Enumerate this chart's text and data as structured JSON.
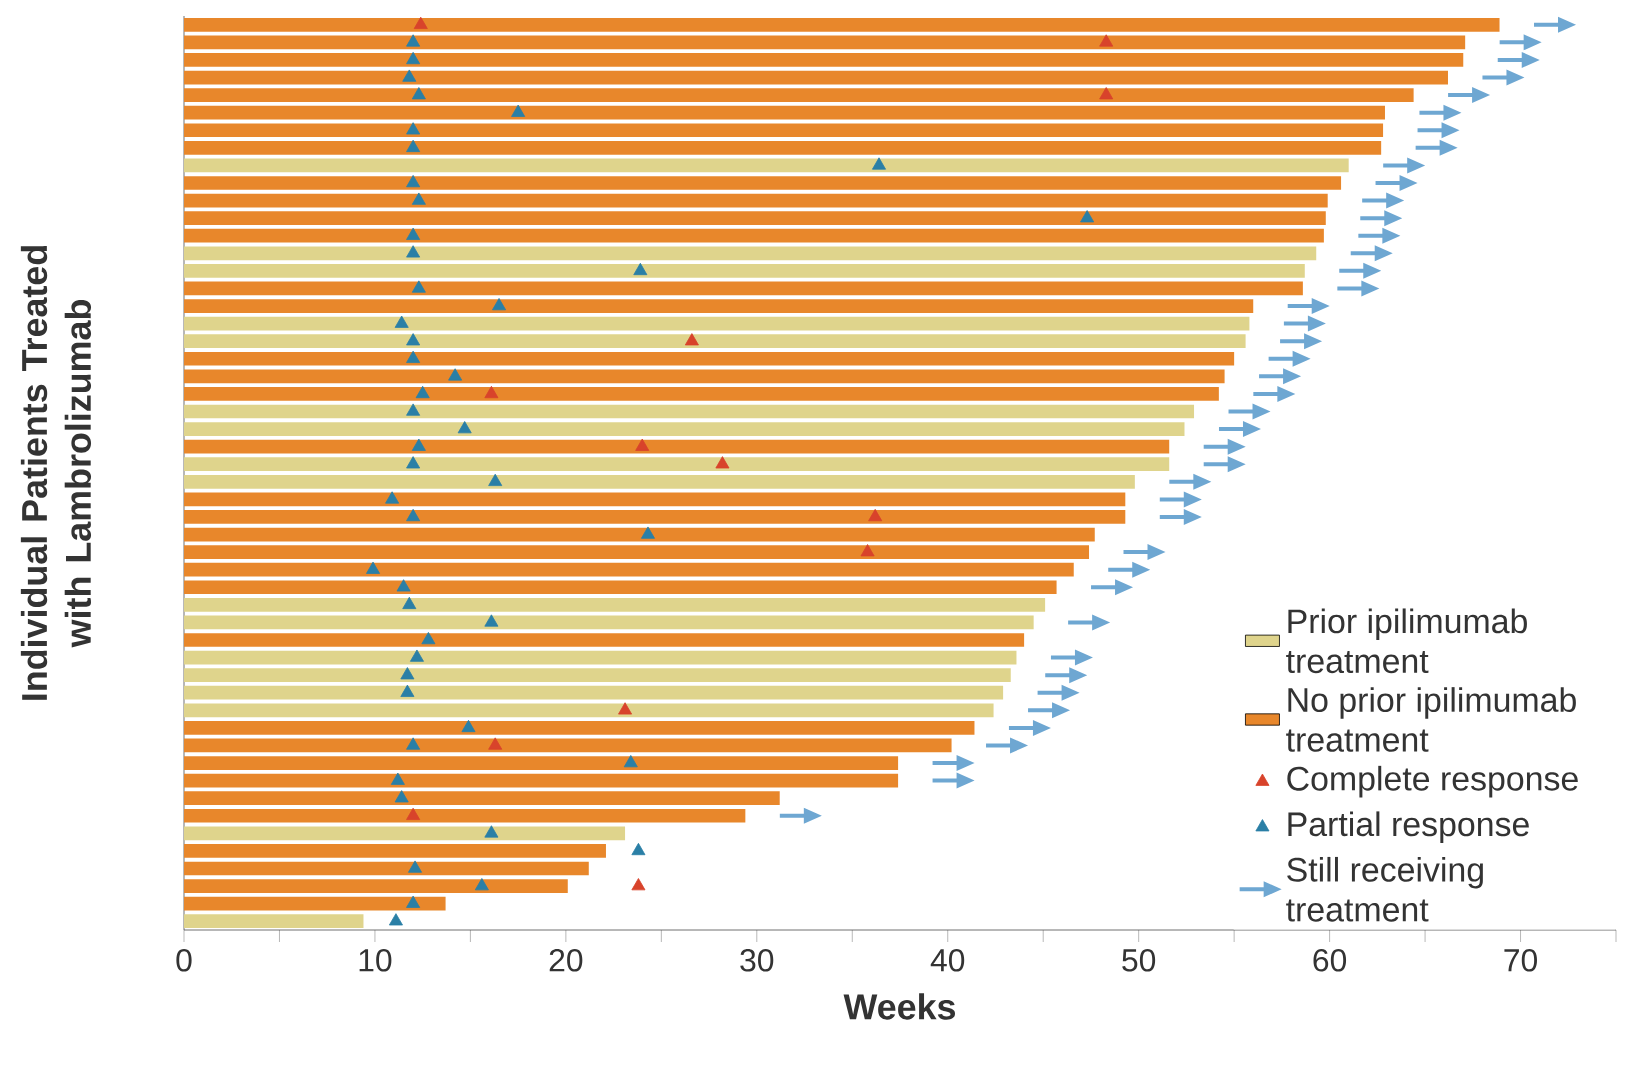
{
  "chart_data": {
    "type": "bar",
    "orientation": "horizontal",
    "xlabel": "Weeks",
    "ylabel": "Individual Patients Treated with Lambrolizumab",
    "categories": [
      null,
      null,
      null,
      null,
      null,
      null,
      null,
      null,
      null,
      null,
      null,
      null,
      null,
      null,
      null,
      null,
      null,
      null,
      null,
      null,
      null,
      null,
      null,
      null,
      null,
      null,
      null,
      null,
      null,
      null,
      null,
      null,
      null,
      null,
      null,
      null,
      null,
      null,
      null,
      null,
      null,
      null,
      null,
      null,
      null,
      null,
      null,
      null,
      null,
      null,
      null,
      null
    ],
    "series": [
      {
        "name": "Prior ipilimumab treatment",
        "color": "#dfd48c",
        "values": [
          null,
          null,
          null,
          null,
          null,
          null,
          null,
          null,
          61.0,
          null,
          null,
          null,
          null,
          59.3,
          58.7,
          null,
          null,
          55.8,
          55.6,
          null,
          null,
          null,
          52.9,
          52.4,
          null,
          51.6,
          49.8,
          null,
          null,
          null,
          null,
          null,
          null,
          45.1,
          44.5,
          null,
          43.6,
          43.3,
          42.9,
          42.4,
          null,
          null,
          null,
          null,
          null,
          null,
          23.1,
          null,
          null,
          null,
          null,
          9.4
        ]
      },
      {
        "name": "No prior ipilimumab treatment",
        "color": "#e8872b",
        "values": [
          68.9,
          67.1,
          67.0,
          66.2,
          64.4,
          62.9,
          62.8,
          62.7,
          null,
          60.6,
          59.9,
          59.8,
          59.7,
          null,
          null,
          58.6,
          56.0,
          null,
          null,
          55.0,
          54.5,
          54.2,
          null,
          null,
          51.6,
          null,
          null,
          49.3,
          49.3,
          47.7,
          47.4,
          46.6,
          45.7,
          null,
          null,
          44.0,
          null,
          null,
          null,
          null,
          41.4,
          40.2,
          37.4,
          37.4,
          31.2,
          29.4,
          null,
          22.1,
          21.2,
          20.1,
          13.7,
          null
        ]
      },
      {
        "name": "Complete response",
        "type": "scatter",
        "marker": "triangle",
        "color": "#d8432b",
        "values": [
          12.4,
          48.3,
          null,
          null,
          48.3,
          null,
          null,
          null,
          null,
          null,
          null,
          null,
          null,
          null,
          null,
          null,
          null,
          null,
          26.6,
          null,
          null,
          16.1,
          null,
          null,
          24.0,
          28.2,
          null,
          null,
          36.2,
          null,
          35.8,
          null,
          null,
          null,
          null,
          null,
          null,
          null,
          null,
          23.1,
          null,
          16.3,
          null,
          null,
          null,
          12.0,
          null,
          null,
          null,
          23.8,
          null,
          null
        ]
      },
      {
        "name": "Partial response",
        "type": "scatter",
        "marker": "triangle",
        "color": "#2a7fa6",
        "values": [
          null,
          12.0,
          12.0,
          11.8,
          12.3,
          17.5,
          12.0,
          12.0,
          36.4,
          12.0,
          12.3,
          47.3,
          12.0,
          12.0,
          23.9,
          12.3,
          16.5,
          11.4,
          12.0,
          12.0,
          14.2,
          12.5,
          12.0,
          14.7,
          12.3,
          12.0,
          16.3,
          10.9,
          12.0,
          24.3,
          null,
          9.9,
          11.5,
          11.8,
          16.1,
          12.8,
          12.2,
          11.7,
          11.7,
          null,
          14.9,
          12.0,
          23.4,
          11.2,
          11.4,
          null,
          16.1,
          23.8,
          12.1,
          15.6,
          12.0,
          11.1
        ]
      },
      {
        "name": "Still receiving treatment",
        "type": "scatter",
        "color": "#6ea7d2",
        "values": [
          71.9,
          70.1,
          70.0,
          69.2,
          67.4,
          65.9,
          65.8,
          65.7,
          64.0,
          63.6,
          62.9,
          62.8,
          62.7,
          62.3,
          61.7,
          61.6,
          59.0,
          58.8,
          58.6,
          58.0,
          57.5,
          57.2,
          55.9,
          55.4,
          54.6,
          54.6,
          52.8,
          52.3,
          52.3,
          null,
          50.4,
          49.6,
          48.7,
          null,
          47.5,
          null,
          46.6,
          46.3,
          45.9,
          45.4,
          44.4,
          43.2,
          40.4,
          40.4,
          null,
          32.4,
          null,
          null,
          null,
          null,
          null,
          null
        ]
      }
    ],
    "xlim": [
      0,
      75
    ],
    "xticks": [
      0,
      {
        "value": 5,
        "label": null
      },
      10,
      {
        "value": 15,
        "label": null
      },
      20,
      {
        "value": 25,
        "label": null
      },
      30,
      {
        "value": 35,
        "label": null
      },
      40,
      {
        "value": 45,
        "label": null
      },
      50,
      {
        "value": 55,
        "label": null
      },
      60,
      {
        "value": 65,
        "label": null
      },
      70,
      {
        "value": 75,
        "label": null
      }
    ],
    "tick_labels": "x",
    "grid": false,
    "legend": "bottom right"
  }
}
